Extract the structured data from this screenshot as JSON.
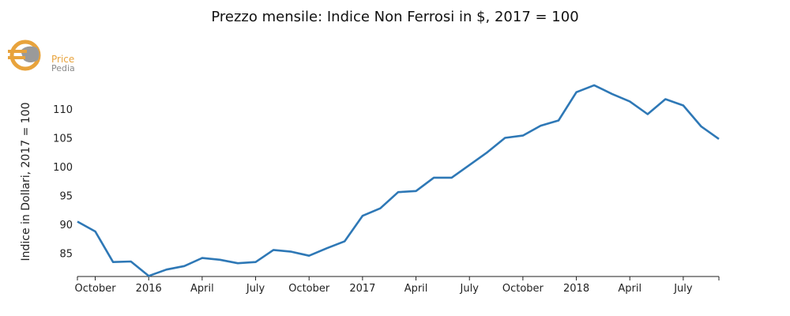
{
  "chart_data": {
    "type": "line",
    "title": "Prezzo mensile: Indice Non Ferrosi in $, 2017 = 100",
    "xlabel": "",
    "ylabel": "Indice in Dollari, 2017 = 100",
    "x_tick_labels": [
      "October",
      "2016",
      "April",
      "July",
      "October",
      "2017",
      "April",
      "July",
      "October",
      "2018",
      "April",
      "July"
    ],
    "y_ticks": [
      85,
      90,
      95,
      100,
      105,
      110
    ],
    "ylim": [
      81,
      114.5
    ],
    "x": [
      "2015-09",
      "2015-10",
      "2015-11",
      "2015-12",
      "2016-01",
      "2016-02",
      "2016-03",
      "2016-04",
      "2016-05",
      "2016-06",
      "2016-07",
      "2016-08",
      "2016-09",
      "2016-10",
      "2016-11",
      "2016-12",
      "2017-01",
      "2017-02",
      "2017-03",
      "2017-04",
      "2017-05",
      "2017-06",
      "2017-07",
      "2017-08",
      "2017-09",
      "2017-10",
      "2017-11",
      "2017-12",
      "2018-01",
      "2018-02",
      "2018-03",
      "2018-04",
      "2018-05",
      "2018-06",
      "2018-07",
      "2018-08",
      "2018-09"
    ],
    "series": [
      {
        "color": "#2e78b6",
        "values": [
          90.5,
          88.8,
          83.5,
          83.6,
          81.1,
          82.2,
          82.8,
          84.2,
          83.9,
          83.3,
          83.5,
          85.6,
          85.3,
          84.6,
          85.9,
          87.1,
          91.5,
          92.8,
          95.6,
          95.8,
          98.1,
          98.1,
          100.3,
          102.5,
          105.0,
          105.4,
          107.1,
          108.0,
          112.9,
          114.1,
          112.6,
          111.3,
          109.1,
          111.7,
          110.6,
          107.0,
          104.8
        ]
      }
    ],
    "grid": false,
    "legend": "none"
  },
  "logo": {
    "name": "pricepedia-logo",
    "line1": "Price",
    "line2": "Pedia",
    "colors": {
      "orange": "#e8a33c",
      "grey": "#8a8a8a"
    }
  }
}
